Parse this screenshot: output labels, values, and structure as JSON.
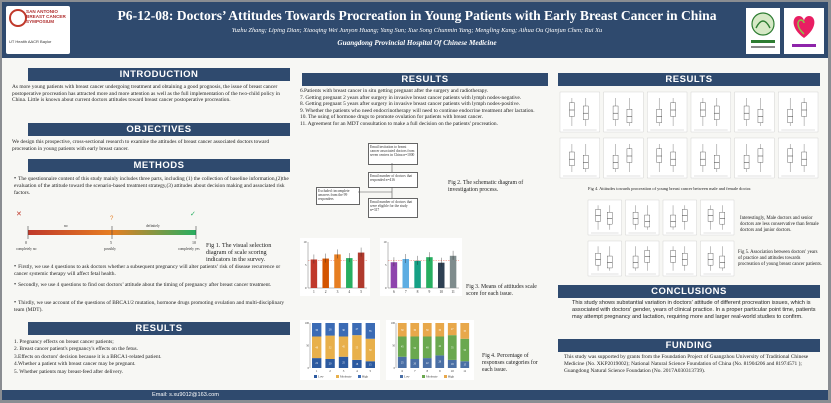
{
  "header": {
    "title": "P6-12-08: Doctors’ Attitudes Towards Procreation in Young Patients with Early Breast Cancer in China",
    "authors": "Yuzhu Zhang; Liping Dian; Xiaoqing Wei Junyon Huang; Yang Sun; Xue Song Chunmin Yang; Mengling Kang; Aihua Ou Qianjun Chen; Rui Xu",
    "affiliation": "Guangdong Provincial Hospital Of Chinese Medicine",
    "logo_left_text": "SAN ANTONIO BREAST CANCER SYMPOSIUM",
    "logo_left_sub": "UT Health  AACR  Baylor"
  },
  "introduction": {
    "heading": "INTRODUCTION",
    "text": "As more young patients with breast cancer undergoing treatment and obtaining a good prognosis, the issue of breast cancer postoperative procreation has attracted more and more attention as well as the full implementation of the two-child policy in China. Little is known about current doctors attitudes toward breast cancer postoperative procreation."
  },
  "objectives": {
    "heading": "OBJECTIVES",
    "text": "We design this prospective, cross-sectional research to examine the attitudes of breast cancer associated doctors toward procreation in young patients with early breast cancer."
  },
  "methods": {
    "heading": "METHODS",
    "intro": "The questionnaire content of this study mainly includes three parts, including (1) the collection of baseline information,(2)the evaluation of the attitude toward the scenario-based treatment strategy,(3) attitudes about decision making and associated risk factors.",
    "scale_labels": [
      "completely no",
      "no",
      "possibly",
      "definitely",
      "completely yes"
    ],
    "scale_ticks": [
      "0",
      "5",
      "10"
    ],
    "fig1_caption": "Fig 1. The visual selection diagram of scale scoring indicators in the survey.",
    "bullets": [
      "Firstly, we use 4 questions to ask doctors whether a subsequent pregnancy will alter patients’ risk of disease recurrence or cancer systemic therapy will affect fetal health.",
      "Secondly, we use 4 questions to find out doctors’ attitude about the timing of pregnancy after breast cancer treatment.",
      "Thirdly, we use account of the questions of BRCA1/2 mutation, hormone drugs promoting ovulation and multi-disciplinary team (MDT)."
    ]
  },
  "results_left": {
    "heading": "RESULTS",
    "items": [
      "1. Pregnancy effects on breast cancer patients;",
      "2. Breast cancer patient's pregnancy's effects on the fetus.",
      "3.Effects on doctors' decision because it is a BRCA1-related patient.",
      "4.Whether a patient with breast cancer may be pregnant.",
      "5. Whether patients may breast-feed after delivery."
    ]
  },
  "results_middle": {
    "heading": "RESULTS",
    "items": [
      "6.Patients with breast cancer in situ getting pregnant after the surgery and radiotherapy.",
      "7. Getting pregnant 2 years after surgery in invasive breast cancer patients with lymph nodes-negative.",
      "8. Getting pregnant 5 years after surgery in invasive breast cancer patients with lymph nodes-positive.",
      "9. Whether the patients who need endocrinotherapy will need to continue endocrine treatment after lactation.",
      "10. The using of hormone drugs to promote ovulation for patients with breast cancer.",
      "11. Agreement for an MDT consultation to make a full decision on the patients' procreation."
    ],
    "flow_boxes": [
      "Email invitation to breast cancer associated doctors from seven centers in China n=1000",
      "Email number of doctors that responded n=416",
      "Excluded: incomplete answers from the 99 responders",
      "Email number of doctors that were eligible for the study n=317"
    ],
    "fig2_caption": "Fig 2. The schematic diagram of investigation process.",
    "fig3_caption": "Fig 3. Means of attitudes scale score for each issue.",
    "fig4_caption": "Fig 4. Percentage of responses categories for each issue."
  },
  "results_right": {
    "heading": "RESULTS",
    "fig4b_caption": "Fig 4. Attitudes towards procreation of young breast cancer between male and female doctor.",
    "side_note": "Interestingly, Male doctors and senior doctors are less conservative than female doctors and junior doctors.",
    "fig5_caption": "Fig 5. Association between doctors' years of practice and attitudes towards procreation of young breast cancer patients."
  },
  "conclusions": {
    "heading": "CONCLUSIONS",
    "text": "This study shows substantial variation in doctors' attitude of different procreation issues, which is associated with doctors' gender, years of clinical practice. In a proper particular point time, patients may attempt pregnancy and lactation, requiring more and larger real-world studies to confirm."
  },
  "funding": {
    "heading": "FUNDING",
    "text": "This study was supported by grants from the Foundation Project of Guangzhou University of Traditional Chinese Medicine (No. XKP2019002); National Natural Science Foundation of China (No. 81904206 and 81974571 ); Guangdong Natural Science Foundation (No. 2017A030313739)."
  },
  "footer": {
    "email": "Email: s.xu9012@163.com"
  },
  "chart_data": [
    {
      "type": "bar",
      "title": "Fig 3. Means of attitudes scale score for each issue",
      "categories": [
        "1",
        "2",
        "3",
        "4",
        "5"
      ],
      "values": [
        6.2,
        6.4,
        7.3,
        6.5,
        7.7
      ],
      "ylim": [
        0,
        10
      ],
      "colors": [
        "#c0392b",
        "#d35400",
        "#e67e22",
        "#27ae60",
        "#b03a2e"
      ]
    },
    {
      "type": "bar",
      "title": "Fig 3 (issues 6-11)",
      "categories": [
        "6",
        "7",
        "8",
        "9",
        "10",
        "11"
      ],
      "values": [
        5.6,
        6.3,
        5.9,
        6.7,
        5.5,
        7.0
      ],
      "ylim": [
        0,
        10
      ],
      "colors": [
        "#8e44ad",
        "#5dade2",
        "#16a085",
        "#27ae60",
        "#2e4053",
        "#7f8c8d"
      ]
    },
    {
      "type": "bar",
      "title": "Fig 4. Percentage of responses categories (issues 1-5)",
      "categories": [
        "1",
        "2",
        "3",
        "4",
        "5"
      ],
      "series": [
        {
          "name": "Low",
          "values": [
            22,
            20,
            25,
            18,
            15
          ],
          "color": "#2c5aa0"
        },
        {
          "name": "Moderate",
          "values": [
            48,
            52,
            45,
            55,
            50
          ],
          "color": "#e8b04b"
        },
        {
          "name": "High",
          "values": [
            30,
            28,
            30,
            27,
            35
          ],
          "color": "#3b6bb5"
        }
      ]
    },
    {
      "type": "bar",
      "title": "Fig 4. Percentage of responses categories (issues 6-11)",
      "categories": [
        "6",
        "7",
        "8",
        "9",
        "10",
        "11"
      ],
      "series": [
        {
          "name": "Low",
          "values": [
            25,
            20,
            22,
            28,
            18,
            15
          ],
          "color": "#4a6fa5"
        },
        {
          "name": "Moderate",
          "values": [
            45,
            50,
            48,
            42,
            55,
            50
          ],
          "color": "#6aa84f"
        },
        {
          "name": "High",
          "values": [
            30,
            30,
            30,
            30,
            27,
            35
          ],
          "color": "#e8a84b"
        }
      ]
    }
  ]
}
